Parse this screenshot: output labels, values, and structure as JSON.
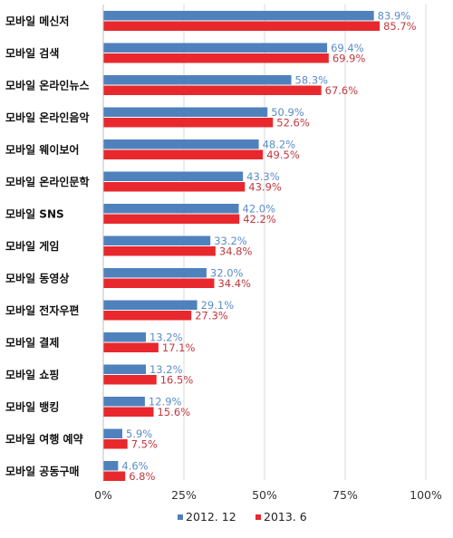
{
  "chart_data": {
    "type": "bar",
    "orientation": "horizontal",
    "categories": [
      "모바일 메신저",
      "모바일 검색",
      "모바일 온라인뉴스",
      "모바일 온라인음악",
      "모바일 웨이보어",
      "모바일 온라인문학",
      "모바일 SNS",
      "모바일 게임",
      "모바일 동영상",
      "모바일 전자우편",
      "모바일 결제",
      "모바일 쇼핑",
      "모바일 뱅킹",
      "모바일 여행 예약",
      "모바일 공동구매"
    ],
    "series": [
      {
        "name": "2012. 12",
        "color": "#4f81bd",
        "label_color": "#5b8cc8",
        "values": [
          83.9,
          69.4,
          58.3,
          50.9,
          48.2,
          43.3,
          42.0,
          33.2,
          32.0,
          29.1,
          13.2,
          13.2,
          12.9,
          5.9,
          4.6
        ],
        "labels": [
          "83.9%",
          "69.4%",
          "58.3%",
          "50.9%",
          "48.2%",
          "43.3%",
          "42.0%",
          "33.2%",
          "32.0%",
          "29.1%",
          "13.2%",
          "13.2%",
          "12.9%",
          "5.9%",
          "4.6%"
        ]
      },
      {
        "name": "2013. 6",
        "color": "#e8282d",
        "label_color": "#c0393f",
        "values": [
          85.7,
          69.9,
          67.6,
          52.6,
          49.5,
          43.9,
          42.2,
          34.8,
          34.4,
          27.3,
          17.1,
          16.5,
          15.6,
          7.5,
          6.8
        ],
        "labels": [
          "85.7%",
          "69.9%",
          "67.6%",
          "52.6%",
          "49.5%",
          "43.9%",
          "42.2%",
          "34.8%",
          "34.4%",
          "27.3%",
          "17.1%",
          "16.5%",
          "15.6%",
          "7.5%",
          "6.8%"
        ]
      }
    ],
    "xlim": [
      0,
      100
    ],
    "xticks": [
      0,
      25,
      50,
      75,
      100
    ],
    "xtick_labels": [
      "0%",
      "25%",
      "50%",
      "75%",
      "100%"
    ],
    "grid": "vertical",
    "legend_position": "bottom",
    "legend_labels": [
      "2012. 12",
      "2013. 6"
    ]
  }
}
